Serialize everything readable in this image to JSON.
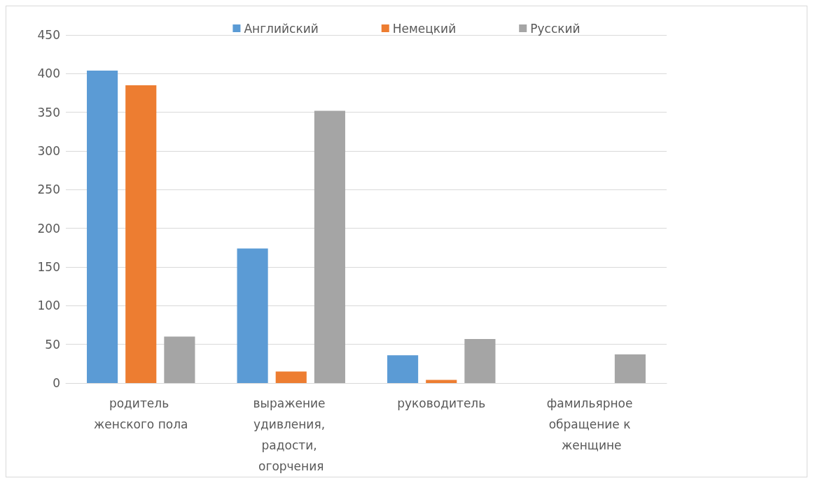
{
  "chart_data": {
    "type": "bar",
    "categories": [
      "родитель женского пола",
      "выражение удивления, радости, огорчения",
      "руководитель",
      "фамильярное обращение к женщине"
    ],
    "series": [
      {
        "name": "Английский",
        "color": "#5b9bd5",
        "values": [
          404,
          174,
          36,
          0
        ]
      },
      {
        "name": "Немецкий",
        "color": "#ed7d31",
        "values": [
          385,
          15,
          4,
          0
        ]
      },
      {
        "name": "Русский",
        "color": "#a5a5a5",
        "values": [
          60,
          352,
          57,
          37
        ]
      }
    ],
    "ylim": [
      0,
      450
    ],
    "yticks": [
      0,
      50,
      100,
      150,
      200,
      250,
      300,
      350,
      400,
      450
    ],
    "grid": "y",
    "legend": "top"
  }
}
